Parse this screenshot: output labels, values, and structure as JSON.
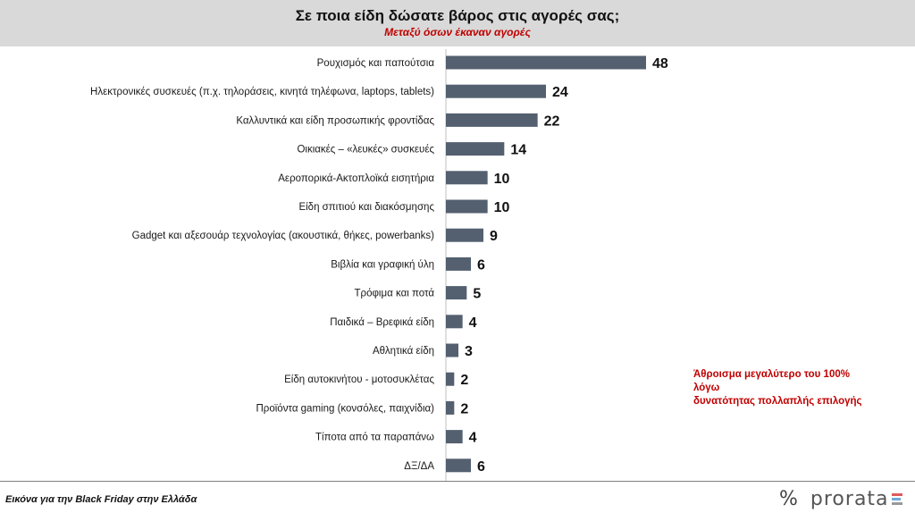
{
  "header": {
    "title": "Σε ποια είδη δώσατε βάρος στις αγορές σας;",
    "subtitle": "Μεταξύ όσων έκαναν αγορές"
  },
  "note": {
    "line1": "Άθροισμα μεγαλύτερο  του 100% λόγω",
    "line2": "δυνατότητας πολλαπλής  επιλογής"
  },
  "footer": {
    "text": "Εικόνα για την Black Friday στην Ελλάδα",
    "logo_symbol": "%",
    "logo_text": "prorata"
  },
  "colors": {
    "bar": "#54606f",
    "note": "#c00000",
    "logo_bar_1": "#e05a5a",
    "logo_bar_2": "#6fa8dc",
    "logo_bar_3": "#999999"
  },
  "chart_data": {
    "type": "bar",
    "orientation": "horizontal",
    "title": "Σε ποια είδη δώσατε βάρος στις αγορές σας;",
    "subtitle": "Μεταξύ όσων έκαναν αγορές",
    "categories": [
      "Ρουχισμός και παπούτσια",
      "Ηλεκτρονικές συσκευές  (π.χ. τηλοράσεις, κινητά τηλέφωνα, laptops, tablets)",
      "Καλλυντικά και είδη προσωπικής  φροντίδας",
      "Οικιακές – «λευκές» συσκευές",
      "Αεροπορικά-Ακτοπλοϊκά εισητήρια",
      "Είδη σπιτιού και διακόσμησης",
      "Gadget και αξεσουάρ τεχνολογίας (ακουστικά, θήκες, powerbanks)",
      "Βιβλία και γραφική ύλη",
      "Τρόφιμα και ποτά",
      "Παιδικά – Βρεφικά είδη",
      "Αθλητικά είδη",
      "Είδη αυτοκινήτου - μοτοσυκλέτας",
      "Προϊόντα gaming  (κονσόλες, παιχνίδια)",
      "Τίποτα από τα παραπάνω",
      "ΔΞ/ΔΑ"
    ],
    "values": [
      48,
      24,
      22,
      14,
      10,
      10,
      9,
      6,
      5,
      4,
      3,
      2,
      2,
      4,
      6
    ],
    "xlim": [
      0,
      50
    ],
    "grid": false,
    "legend": "none"
  }
}
